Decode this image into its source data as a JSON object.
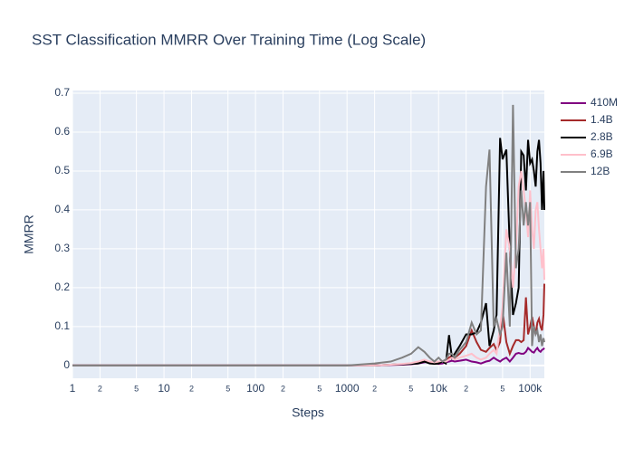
{
  "chart_data": {
    "type": "line",
    "title": "SST Classification MMRR Over Training Time (Log Scale)",
    "x_label": "Steps",
    "y_label": "MMRR",
    "x_log": true,
    "grid": true,
    "legend": "right",
    "x": [
      1,
      2,
      4,
      8,
      16,
      32,
      64,
      128,
      256,
      512,
      1000,
      2000,
      3000,
      4000,
      5000,
      6000,
      7000,
      8000,
      9000,
      10000,
      11000,
      12000,
      13000,
      14000,
      15000,
      17000,
      20000,
      23000,
      26000,
      29000,
      33000,
      36000,
      40000,
      43000,
      47000,
      50000,
      55000,
      60000,
      65000,
      70000,
      75000,
      80000,
      85000,
      90000,
      95000,
      100000,
      105000,
      110000,
      115000,
      120000,
      125000,
      130000,
      135000,
      140000,
      143000
    ],
    "xlim": [
      1,
      143000
    ],
    "xticks": [
      1,
      2,
      5,
      {
        "value": 10,
        "label": "10"
      },
      {
        "value": 20,
        "label": "2"
      },
      {
        "value": 50,
        "label": "5"
      },
      100,
      {
        "value": 200,
        "label": "2"
      },
      {
        "value": 500,
        "label": "5"
      },
      1000,
      {
        "value": 2000,
        "label": "2"
      },
      {
        "value": 5000,
        "label": "5"
      },
      {
        "value": 10000,
        "label": "10k"
      },
      {
        "value": 20000,
        "label": "2"
      },
      {
        "value": 50000,
        "label": "5"
      },
      {
        "value": 100000,
        "label": "100k"
      }
    ],
    "ylim": [
      -0.033,
      0.707
    ],
    "yticks": [
      0,
      0.1,
      0.2,
      0.3,
      0.4,
      0.5,
      0.6,
      0.7
    ],
    "series": [
      {
        "name": "410M",
        "color": "#800080",
        "values": [
          0,
          0,
          0,
          0,
          0,
          0,
          0,
          0,
          0,
          0,
          0,
          0,
          0.001,
          0.002,
          0.003,
          0.005,
          0.008,
          0.01,
          0.006,
          0.004,
          0.005,
          0.008,
          0.01,
          0.012,
          0.01,
          0.012,
          0.015,
          0.01,
          0.008,
          0.005,
          0.01,
          0.012,
          0.02,
          0.015,
          0.01,
          0.015,
          0.02,
          0.01,
          0.02,
          0.03,
          0.032,
          0.03,
          0.03,
          0.035,
          0.045,
          0.04,
          0.035,
          0.033,
          0.04,
          0.045,
          0.038,
          0.035,
          0.04,
          0.042,
          0.045
        ]
      },
      {
        "name": "1.4B",
        "color": "#a52a2a",
        "values": [
          0,
          0,
          0,
          0,
          0,
          0,
          0,
          0,
          0,
          0,
          0,
          0,
          0.002,
          0.003,
          0.005,
          0.008,
          0.01,
          0.008,
          0.005,
          0.005,
          0.01,
          0.015,
          0.02,
          0.025,
          0.02,
          0.03,
          0.05,
          0.09,
          0.06,
          0.04,
          0.035,
          0.045,
          0.055,
          0.04,
          0.06,
          0.14,
          0.06,
          0.03,
          0.05,
          0.065,
          0.065,
          0.06,
          0.065,
          0.175,
          0.08,
          0.1,
          0.125,
          0.1,
          0.08,
          0.11,
          0.12,
          0.1,
          0.09,
          0.13,
          0.21
        ]
      },
      {
        "name": "2.8B",
        "color": "#000000",
        "values": [
          0,
          0,
          0,
          0,
          0,
          0,
          0,
          0,
          0,
          0,
          0,
          0,
          0.002,
          0.003,
          0.004,
          0.005,
          0.01,
          0.005,
          0.004,
          0.005,
          0.01,
          0.005,
          0.078,
          0.02,
          0.03,
          0.05,
          0.08,
          0.08,
          0.085,
          0.11,
          0.16,
          0.05,
          0.09,
          0.13,
          0.585,
          0.53,
          0.555,
          0.3,
          0.13,
          0.16,
          0.2,
          0.55,
          0.54,
          0.45,
          0.58,
          0.52,
          0.53,
          0.5,
          0.46,
          0.55,
          0.58,
          0.52,
          0.4,
          0.5,
          0.4
        ]
      },
      {
        "name": "6.9B",
        "color": "#ffc0cb",
        "values": [
          0,
          0,
          0,
          0,
          0,
          0,
          0,
          0,
          0,
          0,
          0,
          0,
          0.002,
          0.004,
          0.006,
          0.01,
          0.015,
          0.01,
          0.008,
          0.01,
          0.012,
          0.01,
          0.015,
          0.02,
          0.015,
          0.02,
          0.025,
          0.03,
          0.02,
          0.015,
          0.02,
          0.03,
          0.04,
          0.03,
          0.1,
          0.15,
          0.35,
          0.3,
          0.2,
          0.3,
          0.46,
          0.5,
          0.45,
          0.4,
          0.33,
          0.45,
          0.35,
          0.3,
          0.4,
          0.42,
          0.35,
          0.3,
          0.25,
          0.3,
          0.22
        ]
      },
      {
        "name": "12B",
        "color": "#808080",
        "values": [
          0,
          0,
          0,
          0,
          0,
          0,
          0,
          0,
          0,
          0,
          0,
          0.005,
          0.01,
          0.02,
          0.03,
          0.047,
          0.035,
          0.02,
          0.01,
          0.02,
          0.01,
          0.015,
          0.03,
          0.03,
          0.02,
          0.04,
          0.06,
          0.11,
          0.08,
          0.09,
          0.46,
          0.555,
          0.1,
          0.12,
          0.08,
          0.1,
          0.29,
          0.1,
          0.67,
          0.25,
          0.3,
          0.45,
          0.36,
          0.42,
          0.36,
          0.42,
          0.05,
          0.1,
          0.08,
          0.09,
          0.06,
          0.08,
          0.05,
          0.07,
          0.06
        ]
      }
    ]
  }
}
